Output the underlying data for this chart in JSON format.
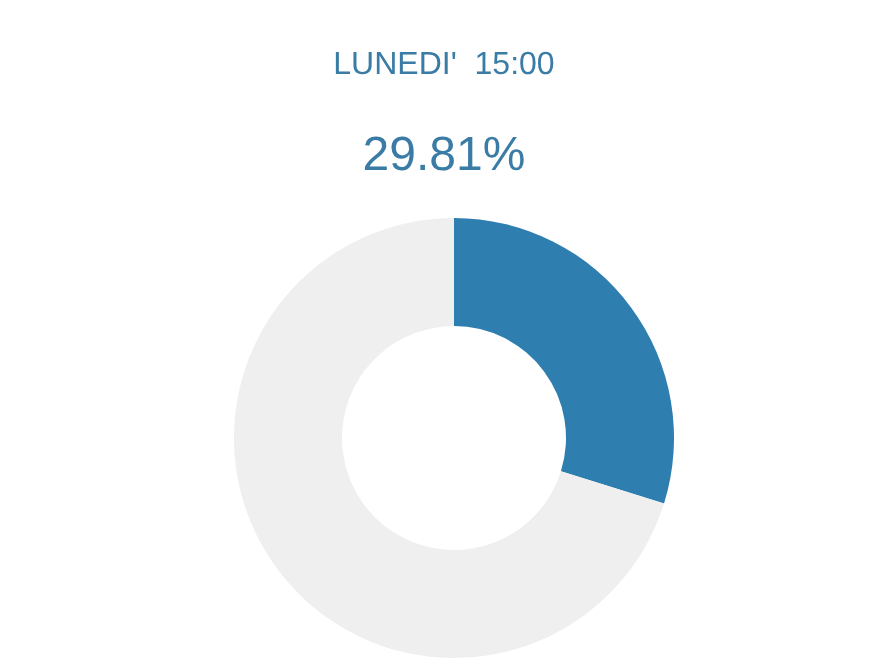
{
  "chart_data": {
    "type": "donut",
    "title": "LUNEDI'  15:00",
    "subtitle": "29.81%",
    "categories": [
      null,
      null
    ],
    "values": [
      29.81,
      70.19
    ],
    "colors": [
      "#2e7eb0",
      "#efefef"
    ],
    "legend": false
  }
}
